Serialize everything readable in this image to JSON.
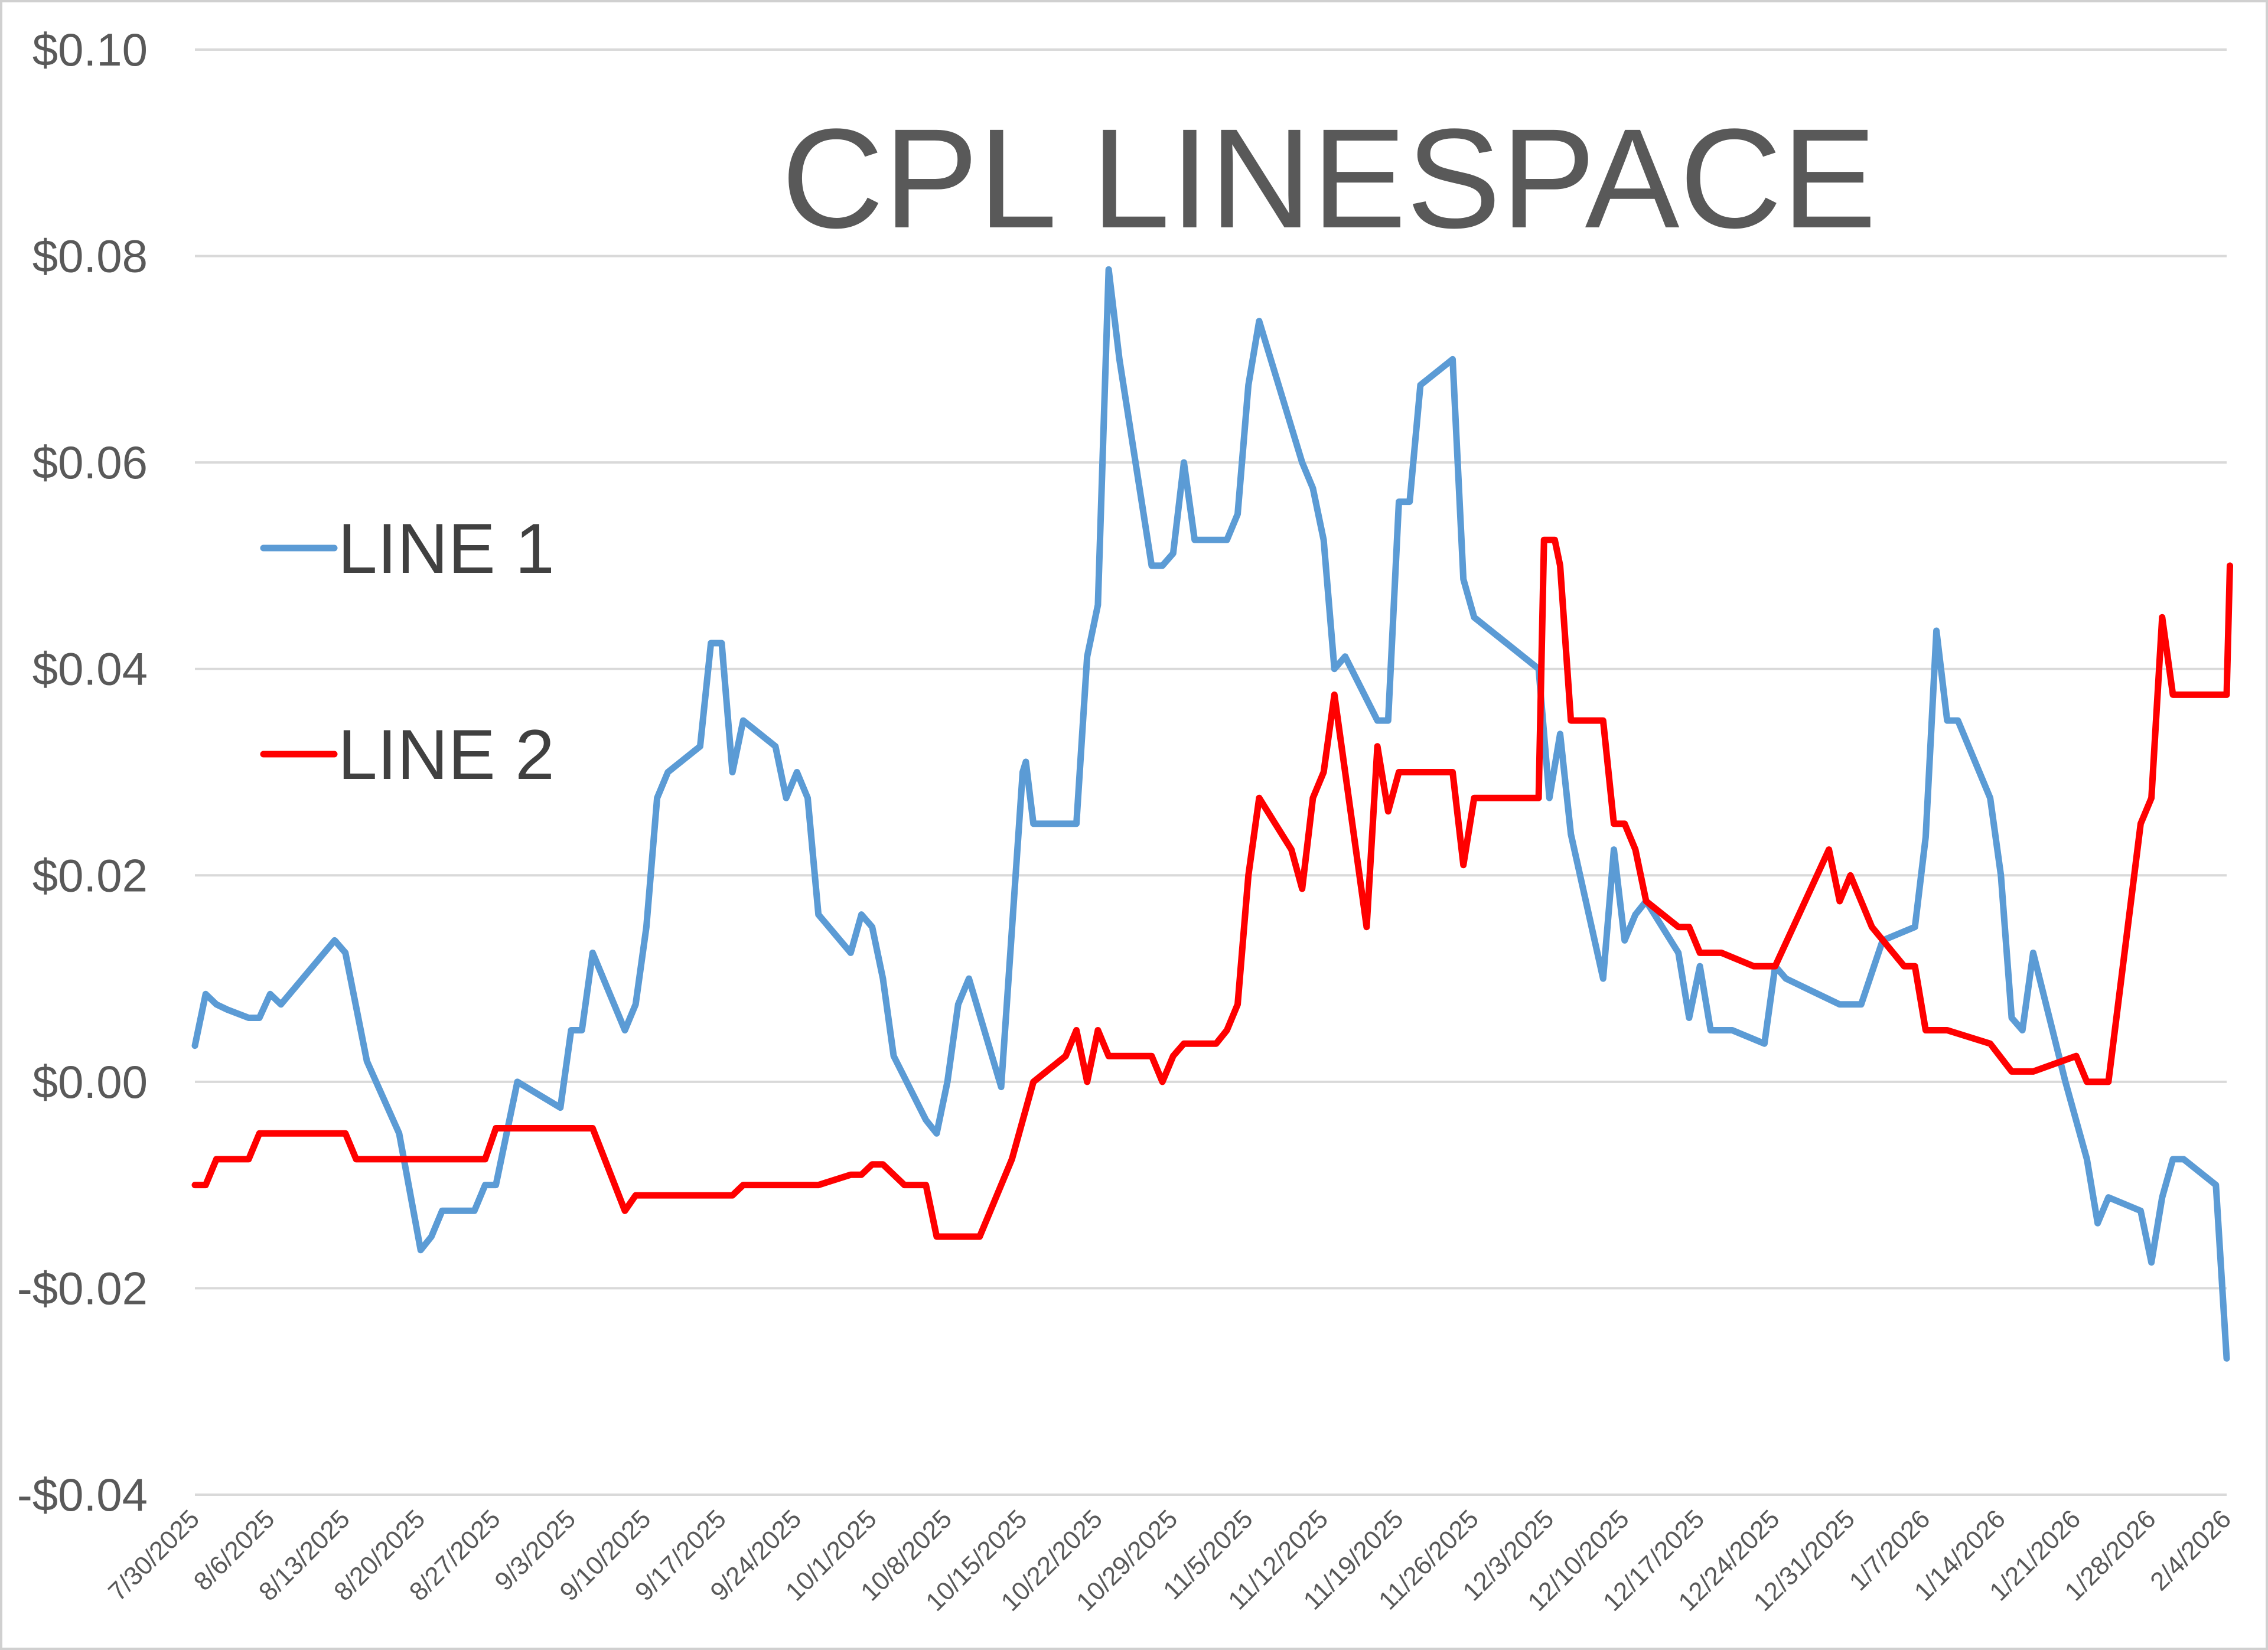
{
  "chart_data": {
    "type": "line",
    "title": "CPL LINESPACE",
    "xlabel": "",
    "ylabel": "",
    "ylim": [
      -0.04,
      0.1
    ],
    "y_ticks": [
      {
        "value": 0.1,
        "label": "$0.10"
      },
      {
        "value": 0.08,
        "label": "$0.08"
      },
      {
        "value": 0.06,
        "label": "$0.06"
      },
      {
        "value": 0.04,
        "label": "$0.04"
      },
      {
        "value": 0.02,
        "label": "$0.02"
      },
      {
        "value": 0.0,
        "label": "$0.00"
      },
      {
        "value": -0.02,
        "label": "-$0.02"
      },
      {
        "value": -0.04,
        "label": "-$0.04"
      }
    ],
    "x_range_days": [
      0,
      189
    ],
    "x_ticks": [
      {
        "day": 0,
        "label": "7/30/2025"
      },
      {
        "day": 7,
        "label": "8/6/2025"
      },
      {
        "day": 14,
        "label": "8/13/2025"
      },
      {
        "day": 21,
        "label": "8/20/2025"
      },
      {
        "day": 28,
        "label": "8/27/2025"
      },
      {
        "day": 35,
        "label": "9/3/2025"
      },
      {
        "day": 42,
        "label": "9/10/2025"
      },
      {
        "day": 49,
        "label": "9/17/2025"
      },
      {
        "day": 56,
        "label": "9/24/2025"
      },
      {
        "day": 63,
        "label": "10/1/2025"
      },
      {
        "day": 70,
        "label": "10/8/2025"
      },
      {
        "day": 77,
        "label": "10/15/2025"
      },
      {
        "day": 84,
        "label": "10/22/2025"
      },
      {
        "day": 91,
        "label": "10/29/2025"
      },
      {
        "day": 98,
        "label": "11/5/2025"
      },
      {
        "day": 105,
        "label": "11/12/2025"
      },
      {
        "day": 112,
        "label": "11/19/2025"
      },
      {
        "day": 119,
        "label": "11/26/2025"
      },
      {
        "day": 126,
        "label": "12/3/2025"
      },
      {
        "day": 133,
        "label": "12/10/2025"
      },
      {
        "day": 140,
        "label": "12/17/2025"
      },
      {
        "day": 147,
        "label": "12/24/2025"
      },
      {
        "day": 154,
        "label": "12/31/2025"
      },
      {
        "day": 161,
        "label": "1/7/2026"
      },
      {
        "day": 168,
        "label": "1/14/2026"
      },
      {
        "day": 175,
        "label": "1/21/2026"
      },
      {
        "day": 182,
        "label": "1/28/2026"
      },
      {
        "day": 189,
        "label": "2/4/2026"
      }
    ],
    "legend": {
      "placement": "left-middle"
    },
    "series": [
      {
        "name": "LINE 1",
        "color": "#5b9bd5",
        "points": [
          [
            0,
            0.0035
          ],
          [
            1,
            0.0085
          ],
          [
            2,
            0.0075
          ],
          [
            3,
            0.007
          ],
          [
            5,
            0.0062
          ],
          [
            6,
            0.0062
          ],
          [
            7,
            0.0085
          ],
          [
            8,
            0.0075
          ],
          [
            13,
            0.0137
          ],
          [
            14,
            0.0125
          ],
          [
            16,
            0.002
          ],
          [
            19,
            -0.005
          ],
          [
            21,
            -0.0163
          ],
          [
            22,
            -0.015
          ],
          [
            23,
            -0.0125
          ],
          [
            26,
            -0.0125
          ],
          [
            27,
            -0.01
          ],
          [
            28,
            -0.01
          ],
          [
            30,
            0.0
          ],
          [
            34,
            -0.0025
          ],
          [
            35,
            0.005
          ],
          [
            36,
            0.005
          ],
          [
            37,
            0.0125
          ],
          [
            40,
            0.005
          ],
          [
            41,
            0.0075
          ],
          [
            42,
            0.015
          ],
          [
            43,
            0.0275
          ],
          [
            44,
            0.03
          ],
          [
            47,
            0.0325
          ],
          [
            48,
            0.0425
          ],
          [
            49,
            0.0425
          ],
          [
            50,
            0.03
          ],
          [
            51,
            0.035
          ],
          [
            54,
            0.0325
          ],
          [
            55,
            0.0275
          ],
          [
            56,
            0.03
          ],
          [
            57,
            0.0275
          ],
          [
            58,
            0.0162
          ],
          [
            61,
            0.0125
          ],
          [
            62,
            0.0162
          ],
          [
            63,
            0.015
          ],
          [
            64,
            0.01
          ],
          [
            65,
            0.0025
          ],
          [
            68,
            -0.0037
          ],
          [
            69,
            -0.005
          ],
          [
            70,
            0.0
          ],
          [
            71,
            0.0075
          ],
          [
            72,
            0.01
          ],
          [
            75,
            -0.0005
          ],
          [
            77,
            0.03
          ],
          [
            77.3,
            0.031
          ],
          [
            78,
            0.025
          ],
          [
            82,
            0.025
          ],
          [
            83,
            0.0412
          ],
          [
            84,
            0.0462
          ],
          [
            85,
            0.0787
          ],
          [
            86,
            0.07
          ],
          [
            89,
            0.05
          ],
          [
            90,
            0.05
          ],
          [
            91,
            0.0512
          ],
          [
            92,
            0.06
          ],
          [
            93,
            0.0525
          ],
          [
            96,
            0.0525
          ],
          [
            97,
            0.055
          ],
          [
            98,
            0.0675
          ],
          [
            99,
            0.0737
          ],
          [
            103,
            0.06
          ],
          [
            104,
            0.0575
          ],
          [
            105,
            0.0525
          ],
          [
            106,
            0.04
          ],
          [
            107,
            0.0412
          ],
          [
            110,
            0.035
          ],
          [
            111,
            0.035
          ],
          [
            112,
            0.0562
          ],
          [
            113,
            0.0562
          ],
          [
            114,
            0.0675
          ],
          [
            117,
            0.07
          ],
          [
            118,
            0.0487
          ],
          [
            119,
            0.045
          ],
          [
            125,
            0.04
          ],
          [
            126,
            0.0275
          ],
          [
            127,
            0.0337
          ],
          [
            128,
            0.024
          ],
          [
            131,
            0.01
          ],
          [
            132,
            0.0225
          ],
          [
            133,
            0.0137
          ],
          [
            134,
            0.0162
          ],
          [
            135,
            0.0175
          ],
          [
            138,
            0.0125
          ],
          [
            139,
            0.0062
          ],
          [
            140,
            0.0112
          ],
          [
            141,
            0.005
          ],
          [
            143,
            0.005
          ],
          [
            146,
            0.0037
          ],
          [
            147,
            0.0112
          ],
          [
            148,
            0.01
          ],
          [
            153,
            0.0075
          ],
          [
            155,
            0.0075
          ],
          [
            157,
            0.0137
          ],
          [
            160,
            0.015
          ],
          [
            161,
            0.0237
          ],
          [
            162,
            0.0437
          ],
          [
            163,
            0.035
          ],
          [
            164,
            0.035
          ],
          [
            167,
            0.0275
          ],
          [
            168,
            0.02
          ],
          [
            169,
            0.0062
          ],
          [
            170,
            0.005
          ],
          [
            171,
            0.0125
          ],
          [
            174,
            0.0
          ],
          [
            176,
            -0.0075
          ],
          [
            177,
            -0.0137
          ],
          [
            178,
            -0.0112
          ],
          [
            181,
            -0.0125
          ],
          [
            182,
            -0.0175
          ],
          [
            183,
            -0.0112
          ],
          [
            184,
            -0.0075
          ],
          [
            185,
            -0.0075
          ],
          [
            188,
            -0.01
          ],
          [
            189,
            -0.0268
          ]
        ]
      },
      {
        "name": "LINE 2",
        "color": "#ff0000",
        "points": [
          [
            0,
            -0.01
          ],
          [
            1,
            -0.01
          ],
          [
            2,
            -0.0075
          ],
          [
            5,
            -0.0075
          ],
          [
            6,
            -0.005
          ],
          [
            14,
            -0.005
          ],
          [
            15,
            -0.0075
          ],
          [
            27,
            -0.0075
          ],
          [
            28,
            -0.0045
          ],
          [
            37,
            -0.0045
          ],
          [
            40,
            -0.0125
          ],
          [
            41,
            -0.011
          ],
          [
            50,
            -0.011
          ],
          [
            51,
            -0.01
          ],
          [
            58,
            -0.01
          ],
          [
            61,
            -0.009
          ],
          [
            62,
            -0.009
          ],
          [
            63,
            -0.008
          ],
          [
            64,
            -0.008
          ],
          [
            66,
            -0.01
          ],
          [
            68,
            -0.01
          ],
          [
            69,
            -0.015
          ],
          [
            73,
            -0.015
          ],
          [
            76,
            -0.0075
          ],
          [
            78,
            0.0
          ],
          [
            81,
            0.0025
          ],
          [
            82,
            0.005
          ],
          [
            83,
            0.0
          ],
          [
            84,
            0.005
          ],
          [
            85,
            0.0025
          ],
          [
            89,
            0.0025
          ],
          [
            90,
            0.0
          ],
          [
            91,
            0.0025
          ],
          [
            92,
            0.0037
          ],
          [
            95,
            0.0037
          ],
          [
            96,
            0.005
          ],
          [
            97,
            0.0075
          ],
          [
            98,
            0.02
          ],
          [
            99,
            0.0275
          ],
          [
            102,
            0.0225
          ],
          [
            103,
            0.0187
          ],
          [
            104,
            0.0275
          ],
          [
            105,
            0.03
          ],
          [
            106,
            0.0375
          ],
          [
            109,
            0.015
          ],
          [
            110,
            0.0325
          ],
          [
            111,
            0.0262
          ],
          [
            112,
            0.03
          ],
          [
            117,
            0.03
          ],
          [
            118,
            0.021
          ],
          [
            119,
            0.0275
          ],
          [
            125,
            0.0275
          ],
          [
            125.5,
            0.0525
          ],
          [
            126.5,
            0.0525
          ],
          [
            127,
            0.05
          ],
          [
            128,
            0.035
          ],
          [
            131,
            0.035
          ],
          [
            132,
            0.025
          ],
          [
            133,
            0.025
          ],
          [
            134,
            0.0225
          ],
          [
            135,
            0.0175
          ],
          [
            138,
            0.015
          ],
          [
            139,
            0.015
          ],
          [
            140,
            0.0125
          ],
          [
            142,
            0.0125
          ],
          [
            145,
            0.0112
          ],
          [
            147,
            0.0112
          ],
          [
            152,
            0.0225
          ],
          [
            153,
            0.0175
          ],
          [
            154,
            0.02
          ],
          [
            156,
            0.015
          ],
          [
            159,
            0.0112
          ],
          [
            160,
            0.0112
          ],
          [
            161,
            0.005
          ],
          [
            163,
            0.005
          ],
          [
            167,
            0.0037
          ],
          [
            169,
            0.001
          ],
          [
            171,
            0.001
          ],
          [
            175,
            0.0025
          ],
          [
            176,
            0.0
          ],
          [
            178,
            0.0
          ],
          [
            181,
            0.025
          ],
          [
            182,
            0.0275
          ],
          [
            183,
            0.045
          ],
          [
            184,
            0.0375
          ],
          [
            189,
            0.0375
          ],
          [
            189.3,
            0.05
          ]
        ]
      }
    ]
  }
}
